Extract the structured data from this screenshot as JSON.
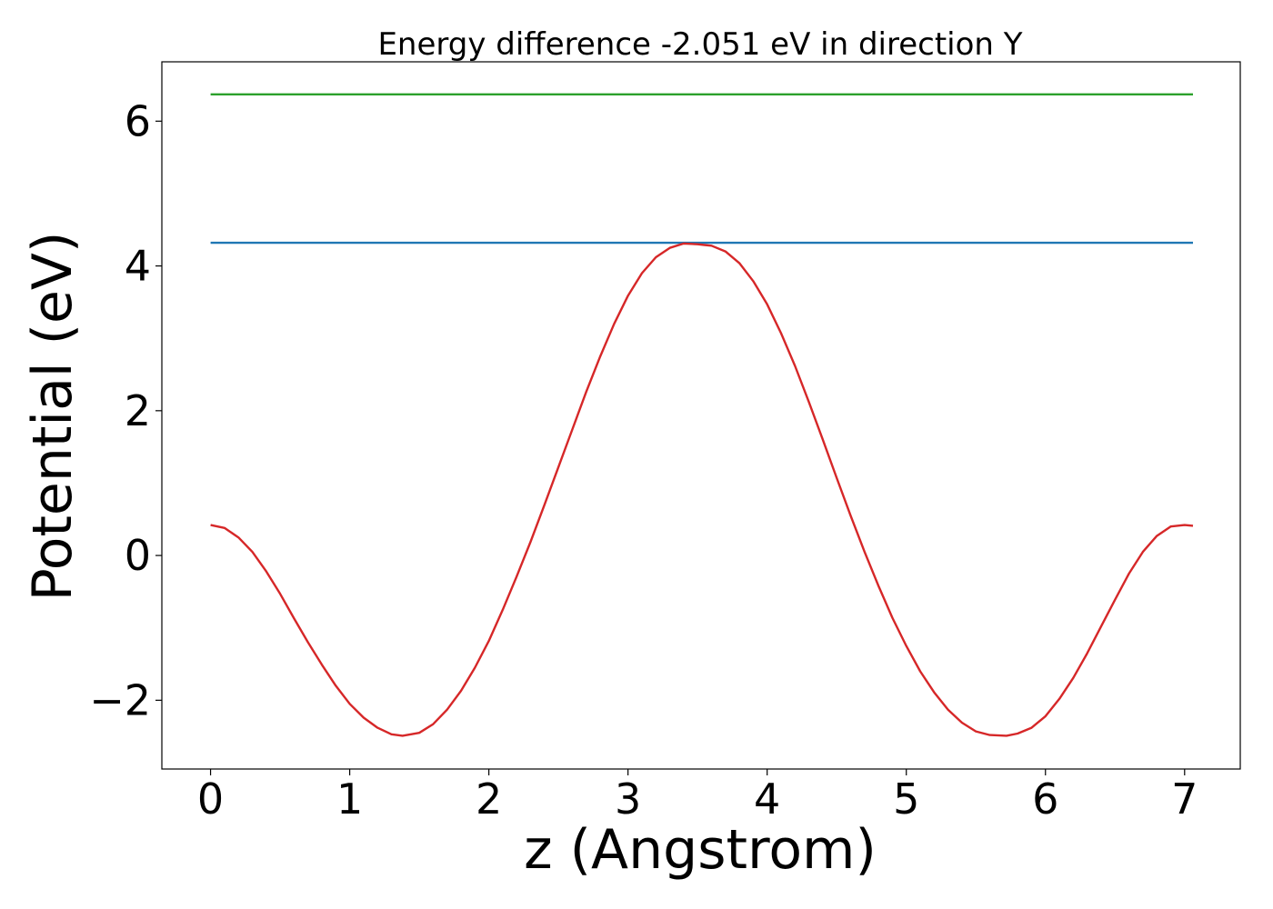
{
  "chart_data": {
    "type": "line",
    "title": "Energy difference -2.051 eV in direction Y",
    "xlabel": "z (Angstrom)",
    "ylabel": "Potential (eV)",
    "xlim": [
      -0.35,
      7.4
    ],
    "ylim": [
      -2.95,
      6.82
    ],
    "xticks": [
      0,
      1,
      2,
      3,
      4,
      5,
      6,
      7
    ],
    "xtick_labels": [
      "0",
      "1",
      "2",
      "3",
      "4",
      "5",
      "6",
      "7"
    ],
    "yticks": [
      -2,
      0,
      2,
      4,
      6
    ],
    "ytick_labels": [
      "−2",
      "0",
      "2",
      "4",
      "6"
    ],
    "grid": false,
    "series": [
      {
        "color": "#2ca02c",
        "x": [
          0,
          7.06
        ],
        "y": [
          6.37,
          6.37
        ]
      },
      {
        "color": "#1f77b4",
        "x": [
          0,
          7.06
        ],
        "y": [
          4.32,
          4.32
        ]
      },
      {
        "color": "#d62728",
        "x": [
          0.0,
          0.1,
          0.2,
          0.3,
          0.4,
          0.5,
          0.6,
          0.7,
          0.8,
          0.9,
          1.0,
          1.1,
          1.2,
          1.3,
          1.38,
          1.5,
          1.6,
          1.7,
          1.8,
          1.9,
          2.0,
          2.1,
          2.2,
          2.3,
          2.4,
          2.5,
          2.6,
          2.7,
          2.8,
          2.9,
          3.0,
          3.1,
          3.2,
          3.3,
          3.4,
          3.5,
          3.55,
          3.6,
          3.7,
          3.8,
          3.9,
          4.0,
          4.1,
          4.2,
          4.3,
          4.4,
          4.5,
          4.6,
          4.7,
          4.8,
          4.9,
          5.0,
          5.1,
          5.2,
          5.3,
          5.4,
          5.5,
          5.6,
          5.72,
          5.8,
          5.9,
          6.0,
          6.1,
          6.2,
          6.3,
          6.4,
          6.5,
          6.6,
          6.7,
          6.8,
          6.9,
          7.0,
          7.06
        ],
        "y": [
          0.42,
          0.38,
          0.25,
          0.05,
          -0.22,
          -0.53,
          -0.87,
          -1.2,
          -1.51,
          -1.8,
          -2.05,
          -2.24,
          -2.38,
          -2.47,
          -2.49,
          -2.45,
          -2.33,
          -2.13,
          -1.87,
          -1.55,
          -1.18,
          -0.75,
          -0.29,
          0.19,
          0.7,
          1.22,
          1.74,
          2.26,
          2.75,
          3.2,
          3.59,
          3.9,
          4.12,
          4.25,
          4.31,
          4.3,
          4.29,
          4.28,
          4.2,
          4.04,
          3.79,
          3.47,
          3.07,
          2.62,
          2.12,
          1.6,
          1.07,
          0.55,
          0.05,
          -0.42,
          -0.86,
          -1.25,
          -1.6,
          -1.89,
          -2.13,
          -2.31,
          -2.43,
          -2.48,
          -2.49,
          -2.46,
          -2.38,
          -2.22,
          -1.98,
          -1.69,
          -1.35,
          -0.98,
          -0.61,
          -0.25,
          0.05,
          0.27,
          0.4,
          0.42,
          0.41
        ]
      }
    ]
  }
}
